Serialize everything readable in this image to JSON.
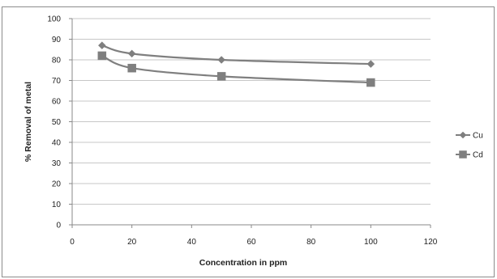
{
  "chart_data": {
    "type": "line",
    "title": "",
    "xlabel": "Concentration in ppm",
    "ylabel": "% Removal of metal",
    "xlim": [
      0,
      120
    ],
    "ylim": [
      0,
      100
    ],
    "xticks": [
      "0",
      "20",
      "40",
      "60",
      "80",
      "100",
      "120"
    ],
    "yticks": [
      "0",
      "10",
      "20",
      "30",
      "40",
      "50",
      "60",
      "70",
      "80",
      "90",
      "100"
    ],
    "grid": true,
    "legend": "right",
    "series": [
      {
        "name": "Cu",
        "marker": "diamond",
        "color": "#7f7f7f",
        "x": [
          10,
          20,
          50,
          100
        ],
        "y": [
          87,
          83,
          80,
          78
        ]
      },
      {
        "name": "Cd",
        "marker": "square",
        "color": "#7f7f7f",
        "x": [
          10,
          20,
          50,
          100
        ],
        "y": [
          82,
          76,
          72,
          69
        ]
      }
    ]
  }
}
